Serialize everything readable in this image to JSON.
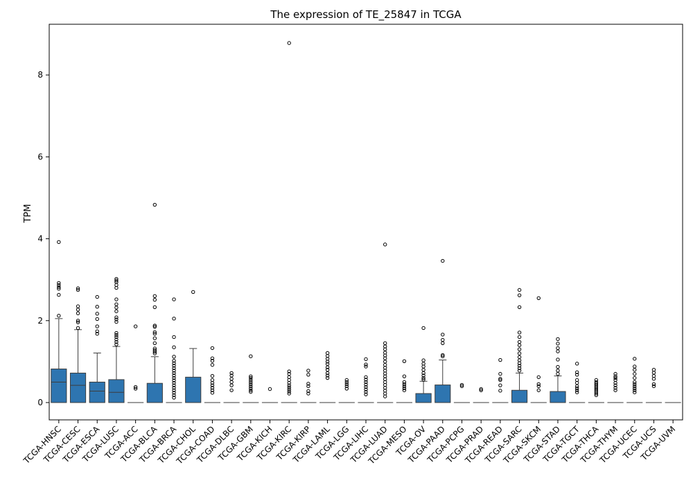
{
  "chart_data": {
    "type": "box",
    "title": "The expression of TE_25847 in TCGA",
    "xlabel": "",
    "ylabel": "TPM",
    "ylim": [
      -0.45,
      9.25
    ],
    "yticks": [
      0,
      2,
      4,
      6,
      8
    ],
    "grid": false,
    "box_color": "#2e75b0",
    "categories": [
      "TCGA-HNSC",
      "TCGA-CESC",
      "TCGA-ESCA",
      "TCGA-LUSC",
      "TCGA-ACC",
      "TCGA-BLCA",
      "TCGA-BRCA",
      "TCGA-CHOL",
      "TCGA-COAD",
      "TCGA-DLBC",
      "TCGA-GBM",
      "TCGA-KICH",
      "TCGA-KIRC",
      "TCGA-KIRP",
      "TCGA-LAML",
      "TCGA-LGG",
      "TCGA-LIHC",
      "TCGA-LUAD",
      "TCGA-MESO",
      "TCGA-OV",
      "TCGA-PAAD",
      "TCGA-PCPG",
      "TCGA-PRAD",
      "TCGA-READ",
      "TCGA-SARC",
      "TCGA-SKCM",
      "TCGA-STAD",
      "TCGA-TGCT",
      "TCGA-THCA",
      "TCGA-THYM",
      "TCGA-UCEC",
      "TCGA-UCS",
      "TCGA-UVM"
    ],
    "boxes": [
      {
        "min": 0,
        "q1": 0,
        "median": 0.5,
        "q3": 0.82,
        "max": 2.05,
        "outliers": [
          2.12,
          2.63,
          2.78,
          2.82,
          2.87,
          2.92,
          3.92
        ]
      },
      {
        "min": 0,
        "q1": 0,
        "median": 0.42,
        "q3": 0.72,
        "max": 1.78,
        "outliers": [
          1.82,
          1.96,
          2.0,
          2.18,
          2.27,
          2.35,
          2.75,
          2.79
        ]
      },
      {
        "min": 0,
        "q1": 0,
        "median": 0.28,
        "q3": 0.5,
        "max": 1.21,
        "outliers": [
          1.68,
          1.74,
          1.86,
          2.04,
          2.17,
          2.34,
          2.58
        ]
      },
      {
        "min": 0,
        "q1": 0,
        "median": 0.25,
        "q3": 0.56,
        "max": 1.37,
        "outliers": [
          1.42,
          1.48,
          1.54,
          1.6,
          1.65,
          1.7,
          1.97,
          2.03,
          2.08,
          2.23,
          2.32,
          2.4,
          2.52,
          2.8,
          2.87,
          2.94,
          2.98,
          3.02
        ]
      },
      {
        "min": 0,
        "q1": 0,
        "median": 0,
        "q3": 0,
        "max": 0,
        "outliers": [
          0.34,
          0.38,
          1.86
        ]
      },
      {
        "min": 0,
        "q1": 0,
        "median": 0,
        "q3": 0.47,
        "max": 1.12,
        "outliers": [
          1.2,
          1.24,
          1.28,
          1.32,
          1.45,
          1.57,
          1.68,
          1.72,
          1.85,
          1.88,
          2.33,
          2.51,
          2.6,
          4.83
        ]
      },
      {
        "min": 0,
        "q1": 0,
        "median": 0,
        "q3": 0,
        "max": 0,
        "outliers": [
          0.12,
          0.18,
          0.24,
          0.3,
          0.36,
          0.42,
          0.48,
          0.54,
          0.6,
          0.66,
          0.72,
          0.78,
          0.84,
          0.9,
          0.96,
          1.02,
          1.12,
          1.35,
          1.6,
          2.05,
          2.52
        ]
      },
      {
        "min": 0,
        "q1": 0,
        "median": 0,
        "q3": 0.62,
        "max": 1.32,
        "outliers": [
          2.7
        ]
      },
      {
        "min": 0,
        "q1": 0,
        "median": 0,
        "q3": 0,
        "max": 0,
        "outliers": [
          0.24,
          0.3,
          0.36,
          0.42,
          0.48,
          0.55,
          0.65,
          0.92,
          1.02,
          1.08,
          1.33
        ]
      },
      {
        "min": 0,
        "q1": 0,
        "median": 0,
        "q3": 0,
        "max": 0,
        "outliers": [
          0.3,
          0.42,
          0.5,
          0.58,
          0.66,
          0.72
        ]
      },
      {
        "min": 0,
        "q1": 0,
        "median": 0,
        "q3": 0,
        "max": 0,
        "outliers": [
          0.26,
          0.3,
          0.35,
          0.4,
          0.45,
          0.5,
          0.55,
          0.6,
          0.64,
          1.13
        ]
      },
      {
        "min": 0,
        "q1": 0,
        "median": 0,
        "q3": 0,
        "max": 0,
        "outliers": [
          0.33
        ]
      },
      {
        "min": 0,
        "q1": 0,
        "median": 0,
        "q3": 0,
        "max": 0,
        "outliers": [
          0.22,
          0.27,
          0.32,
          0.37,
          0.42,
          0.48,
          0.55,
          0.62,
          0.7,
          0.76,
          8.78
        ]
      },
      {
        "min": 0,
        "q1": 0,
        "median": 0,
        "q3": 0,
        "max": 0,
        "outliers": [
          0.22,
          0.28,
          0.4,
          0.46,
          0.68,
          0.78
        ]
      },
      {
        "min": 0,
        "q1": 0,
        "median": 0,
        "q3": 0,
        "max": 0,
        "outliers": [
          0.6,
          0.66,
          0.72,
          0.8,
          0.86,
          0.94,
          1.0,
          1.07,
          1.14,
          1.21
        ]
      },
      {
        "min": 0,
        "q1": 0,
        "median": 0,
        "q3": 0,
        "max": 0,
        "outliers": [
          0.34,
          0.4,
          0.45,
          0.5,
          0.55
        ]
      },
      {
        "min": 0,
        "q1": 0,
        "median": 0,
        "q3": 0,
        "max": 0,
        "outliers": [
          0.2,
          0.26,
          0.32,
          0.38,
          0.44,
          0.5,
          0.56,
          0.62,
          0.88,
          0.93,
          1.06
        ]
      },
      {
        "min": 0,
        "q1": 0,
        "median": 0,
        "q3": 0,
        "max": 0,
        "outliers": [
          0.15,
          0.22,
          0.29,
          0.36,
          0.43,
          0.5,
          0.57,
          0.64,
          0.71,
          0.78,
          0.85,
          0.92,
          1.0,
          1.08,
          1.15,
          1.22,
          1.3,
          1.37,
          1.45,
          3.86
        ]
      },
      {
        "min": 0,
        "q1": 0,
        "median": 0,
        "q3": 0,
        "max": 0,
        "outliers": [
          0.3,
          0.35,
          0.4,
          0.45,
          0.5,
          0.64,
          1.01
        ]
      },
      {
        "min": 0,
        "q1": 0,
        "median": 0,
        "q3": 0.22,
        "max": 0.52,
        "outliers": [
          0.56,
          0.6,
          0.66,
          0.72,
          0.8,
          0.88,
          0.95,
          1.03,
          1.82
        ]
      },
      {
        "min": 0,
        "q1": 0,
        "median": 0,
        "q3": 0.43,
        "max": 1.04,
        "outliers": [
          1.13,
          1.16,
          1.45,
          1.53,
          1.66,
          3.46
        ]
      },
      {
        "min": 0,
        "q1": 0,
        "median": 0,
        "q3": 0,
        "max": 0,
        "outliers": [
          0.4,
          0.43
        ]
      },
      {
        "min": 0,
        "q1": 0,
        "median": 0,
        "q3": 0,
        "max": 0,
        "outliers": [
          0.3,
          0.33
        ]
      },
      {
        "min": 0,
        "q1": 0,
        "median": 0,
        "q3": 0,
        "max": 0,
        "outliers": [
          0.29,
          0.42,
          0.55,
          0.58,
          0.7,
          1.04
        ]
      },
      {
        "min": 0,
        "q1": 0,
        "median": 0,
        "q3": 0.3,
        "max": 0.72,
        "outliers": [
          0.78,
          0.84,
          0.9,
          0.96,
          1.03,
          1.11,
          1.2,
          1.3,
          1.4,
          1.48,
          1.6,
          1.71,
          2.33,
          2.62,
          2.75
        ]
      },
      {
        "min": 0,
        "q1": 0,
        "median": 0,
        "q3": 0,
        "max": 0,
        "outliers": [
          0.3,
          0.4,
          0.45,
          0.62,
          2.55
        ]
      },
      {
        "min": 0,
        "q1": 0,
        "median": 0,
        "q3": 0.27,
        "max": 0.65,
        "outliers": [
          0.7,
          0.78,
          0.87,
          1.05,
          1.25,
          1.33,
          1.44,
          1.55
        ]
      },
      {
        "min": 0,
        "q1": 0,
        "median": 0,
        "q3": 0,
        "max": 0,
        "outliers": [
          0.25,
          0.3,
          0.35,
          0.4,
          0.48,
          0.55,
          0.68,
          0.74,
          0.95
        ]
      },
      {
        "min": 0,
        "q1": 0,
        "median": 0,
        "q3": 0,
        "max": 0,
        "outliers": [
          0.18,
          0.22,
          0.26,
          0.3,
          0.34,
          0.38,
          0.42,
          0.46,
          0.5,
          0.55
        ]
      },
      {
        "min": 0,
        "q1": 0,
        "median": 0,
        "q3": 0,
        "max": 0,
        "outliers": [
          0.3,
          0.36,
          0.42,
          0.48,
          0.55,
          0.6,
          0.64,
          0.7
        ]
      },
      {
        "min": 0,
        "q1": 0,
        "median": 0,
        "q3": 0,
        "max": 0,
        "outliers": [
          0.25,
          0.3,
          0.35,
          0.4,
          0.45,
          0.5,
          0.6,
          0.7,
          0.8,
          0.88,
          1.07
        ]
      },
      {
        "min": 0,
        "q1": 0,
        "median": 0,
        "q3": 0,
        "max": 0,
        "outliers": [
          0.4,
          0.45,
          0.58,
          0.65,
          0.73,
          0.8
        ]
      },
      {
        "min": 0,
        "q1": 0,
        "median": 0,
        "q3": 0,
        "max": 0,
        "outliers": []
      }
    ]
  }
}
